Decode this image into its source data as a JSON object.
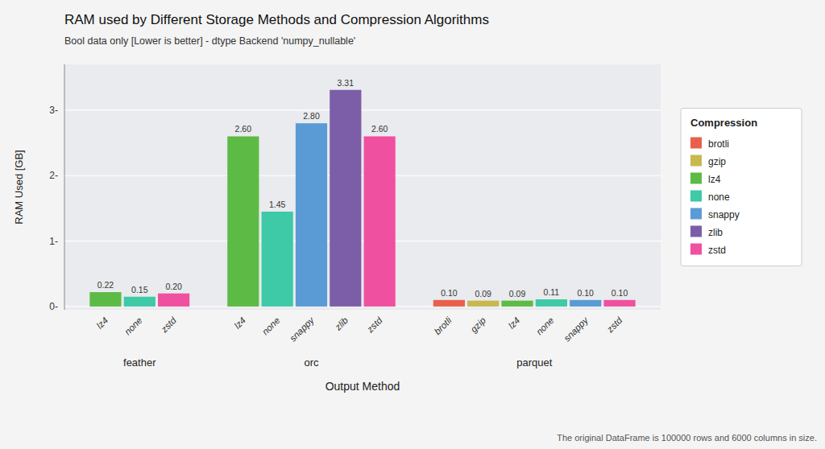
{
  "chart_data": {
    "type": "bar",
    "title": "RAM used by Different Storage Methods and Compression Algorithms",
    "subtitle": "Bool data only [Lower is better] - dtype Backend 'numpy_nullable'",
    "xlabel": "Output Method",
    "ylabel": "RAM Used [GB]",
    "footnote": "The original DataFrame is 100000 rows and 6000 columns in size.",
    "groups": [
      {
        "name": "feather",
        "categories": [
          "lz4",
          "none",
          "zstd"
        ],
        "values": [
          0.22,
          0.15,
          0.2
        ],
        "value_labels": [
          "0.22",
          "0.15",
          "0.20"
        ]
      },
      {
        "name": "orc",
        "categories": [
          "lz4",
          "none",
          "snappy",
          "zlib",
          "zstd"
        ],
        "values": [
          2.6,
          1.45,
          2.8,
          3.31,
          2.6
        ],
        "value_labels": [
          "2.60",
          "1.45",
          "2.80",
          "3.31",
          "2.60"
        ]
      },
      {
        "name": "parquet",
        "categories": [
          "brotli",
          "gzip",
          "lz4",
          "none",
          "snappy",
          "zstd"
        ],
        "values": [
          0.1,
          0.09,
          0.09,
          0.11,
          0.1,
          0.1
        ],
        "value_labels": [
          "0.10",
          "0.09",
          "0.09",
          "0.11",
          "0.10",
          "0.10"
        ]
      }
    ],
    "legend_title": "Compression",
    "series": [
      {
        "name": "brotli",
        "color": "#E8604C"
      },
      {
        "name": "gzip",
        "color": "#C8B850"
      },
      {
        "name": "lz4",
        "color": "#5DBB45"
      },
      {
        "name": "none",
        "color": "#3EC9A7"
      },
      {
        "name": "snappy",
        "color": "#5B9BD5"
      },
      {
        "name": "zlib",
        "color": "#7B5EA7"
      },
      {
        "name": "zstd",
        "color": "#F050A0"
      }
    ],
    "ylim": [
      -0.05,
      3.7
    ],
    "yticks": [
      {
        "value": 0,
        "label": "0-"
      },
      {
        "value": 1,
        "label": "1-"
      },
      {
        "value": 2,
        "label": "2-"
      },
      {
        "value": 3,
        "label": "3-"
      }
    ],
    "grid": true,
    "legend": "right",
    "data_labels": true
  }
}
